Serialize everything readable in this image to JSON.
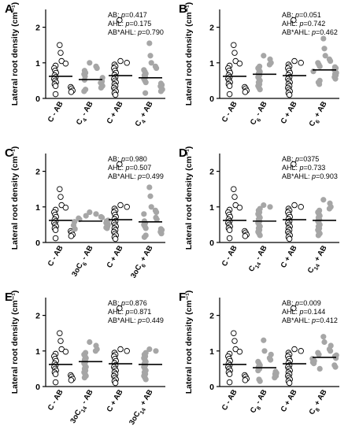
{
  "chart_data": [
    {
      "type": "scatter",
      "panel_label": "A",
      "ylabel": "Lateral root density (cm⁻¹)",
      "ylim": [
        0,
        2.5
      ],
      "yticks": [
        "0",
        "1",
        "2"
      ],
      "categories": [
        {
          "main": "C - AB",
          "sub": ""
        },
        {
          "main": "C",
          "sub": "4",
          "suffix": " - AB"
        },
        {
          "main": "C + AB",
          "sub": ""
        },
        {
          "main": "C",
          "sub": "4",
          "suffix": " + AB"
        }
      ],
      "stats": [
        {
          "label": "AB: ",
          "p": "p",
          "value": "=0.417"
        },
        {
          "label": "AHL: ",
          "p": "p",
          "value": "=0.175"
        },
        {
          "label": "AB*AHL: ",
          "p": "p",
          "value": "=0.790"
        }
      ],
      "series": [
        {
          "values": [
            1.5,
            1.28,
            1.05,
            0.98,
            0.92,
            0.85,
            0.78,
            0.72,
            0.65,
            0.6,
            0.55,
            0.5,
            0.45,
            0.4,
            0.35,
            0.32,
            0.28,
            0.22,
            0.18,
            0.12
          ],
          "mean": 0.62,
          "filled": false
        },
        {
          "values": [
            1.0,
            0.9,
            0.85,
            0.78,
            0.72,
            0.68,
            0.62,
            0.58,
            0.52,
            0.48,
            0.44,
            0.4,
            0.35,
            0.3,
            0.25,
            0.2
          ],
          "mean": 0.53,
          "filled": true
        },
        {
          "values": [
            2.2,
            1.05,
            1.0,
            0.95,
            0.9,
            0.85,
            0.78,
            0.72,
            0.66,
            0.6,
            0.55,
            0.5,
            0.45,
            0.4,
            0.35,
            0.3,
            0.25,
            0.2,
            0.15,
            0.1
          ],
          "mean": 0.64,
          "filled": false
        },
        {
          "values": [
            1.55,
            1.2,
            1.0,
            0.9,
            0.85,
            0.8,
            0.75,
            0.7,
            0.65,
            0.6,
            0.55,
            0.5,
            0.45,
            0.42,
            0.38,
            0.34,
            0.3,
            0.25,
            0.2,
            0.15
          ],
          "mean": 0.58,
          "filled": true
        }
      ]
    },
    {
      "type": "scatter",
      "panel_label": "B",
      "ylabel": "Lateral root density (cm⁻¹)",
      "ylim": [
        0,
        2.5
      ],
      "yticks": [
        "0",
        "1",
        "2"
      ],
      "categories": [
        {
          "main": "C - AB",
          "sub": ""
        },
        {
          "main": "C",
          "sub": "6",
          "suffix": " - AB"
        },
        {
          "main": "C + AB",
          "sub": ""
        },
        {
          "main": "C",
          "sub": "6",
          "suffix": " + AB"
        }
      ],
      "stats": [
        {
          "label": "AB: ",
          "p": "p",
          "value": "=0.051"
        },
        {
          "label": "AHL: ",
          "p": "p",
          "value": "=0.742"
        },
        {
          "label": "AB*AHL: ",
          "p": "p",
          "value": "=0.462"
        }
      ],
      "series": [
        {
          "values": [
            1.5,
            1.28,
            1.05,
            0.98,
            0.92,
            0.85,
            0.78,
            0.72,
            0.65,
            0.6,
            0.55,
            0.5,
            0.45,
            0.4,
            0.35,
            0.32,
            0.28,
            0.22,
            0.18,
            0.12
          ],
          "mean": 0.62,
          "filled": false
        },
        {
          "values": [
            1.2,
            1.1,
            1.0,
            0.95,
            0.9,
            0.85,
            0.8,
            0.75,
            0.7,
            0.65,
            0.6,
            0.55,
            0.5,
            0.45,
            0.4,
            0.35,
            0.3,
            0.25
          ],
          "mean": 0.68,
          "filled": true
        },
        {
          "values": [
            2.2,
            1.05,
            1.0,
            0.95,
            0.9,
            0.85,
            0.78,
            0.72,
            0.66,
            0.6,
            0.55,
            0.5,
            0.45,
            0.4,
            0.35,
            0.3,
            0.25,
            0.2,
            0.15,
            0.1
          ],
          "mean": 0.64,
          "filled": false
        },
        {
          "values": [
            1.68,
            1.4,
            1.2,
            1.1,
            1.05,
            1.0,
            0.95,
            0.9,
            0.88,
            0.85,
            0.8,
            0.76,
            0.72,
            0.68,
            0.65,
            0.6,
            0.55,
            0.5,
            0.45,
            0.4
          ],
          "mean": 0.8,
          "filled": true
        }
      ]
    },
    {
      "type": "scatter",
      "panel_label": "C",
      "ylabel": "Lateral root density (cm⁻¹)",
      "ylim": [
        0,
        2.5
      ],
      "yticks": [
        "0",
        "1",
        "2"
      ],
      "categories": [
        {
          "main": "C - AB",
          "sub": ""
        },
        {
          "main": "3oC",
          "sub": "6",
          "suffix": " - AB"
        },
        {
          "main": "C + AB",
          "sub": ""
        },
        {
          "main": "3oC",
          "sub": "6",
          "suffix": " + AB"
        }
      ],
      "stats": [
        {
          "label": "AB: ",
          "p": "p",
          "value": "=0.980"
        },
        {
          "label": "AHL: ",
          "p": "p",
          "value": "=0.507"
        },
        {
          "label": "AB*AHL: ",
          "p": "p",
          "value": "=0.499"
        }
      ],
      "series": [
        {
          "values": [
            1.5,
            1.28,
            1.05,
            0.98,
            0.92,
            0.85,
            0.78,
            0.72,
            0.65,
            0.6,
            0.55,
            0.5,
            0.45,
            0.4,
            0.35,
            0.32,
            0.28,
            0.22,
            0.18,
            0.12
          ],
          "mean": 0.62,
          "filled": false
        },
        {
          "values": [
            0.85,
            0.8,
            0.75,
            0.72,
            0.7,
            0.68,
            0.65,
            0.62,
            0.6,
            0.58,
            0.55,
            0.52,
            0.5,
            0.48,
            0.45,
            0.42,
            0.4,
            0.38
          ],
          "mean": 0.6,
          "filled": true
        },
        {
          "values": [
            2.2,
            1.05,
            1.0,
            0.95,
            0.9,
            0.85,
            0.78,
            0.72,
            0.66,
            0.6,
            0.55,
            0.5,
            0.45,
            0.4,
            0.35,
            0.3,
            0.25,
            0.2,
            0.15,
            0.1
          ],
          "mean": 0.64,
          "filled": false
        },
        {
          "values": [
            1.55,
            1.3,
            1.0,
            0.9,
            0.85,
            0.8,
            0.7,
            0.65,
            0.6,
            0.55,
            0.5,
            0.45,
            0.4,
            0.38,
            0.35,
            0.3,
            0.25,
            0.2,
            0.15
          ],
          "mean": 0.58,
          "filled": true
        }
      ]
    },
    {
      "type": "scatter",
      "panel_label": "D",
      "ylabel": "Lateral root density (cm⁻¹)",
      "ylim": [
        0,
        2.5
      ],
      "yticks": [
        "0",
        "1",
        "2"
      ],
      "categories": [
        {
          "main": "C - AB",
          "sub": ""
        },
        {
          "main": "C",
          "sub": "14",
          "suffix": " - AB"
        },
        {
          "main": "C + AB",
          "sub": ""
        },
        {
          "main": "C",
          "sub": "14",
          "suffix": " + AB"
        }
      ],
      "stats": [
        {
          "label": "AB: ",
          "p": "p",
          "value": "=0375"
        },
        {
          "label": "AHL: ",
          "p": "p",
          "value": "=0.733"
        },
        {
          "label": "AB*AHL: ",
          "p": "p",
          "value": "=0.903"
        }
      ],
      "series": [
        {
          "values": [
            1.5,
            1.28,
            1.05,
            0.98,
            0.92,
            0.85,
            0.78,
            0.72,
            0.65,
            0.6,
            0.55,
            0.5,
            0.45,
            0.4,
            0.35,
            0.32,
            0.28,
            0.22,
            0.18,
            0.12
          ],
          "mean": 0.62,
          "filled": false
        },
        {
          "values": [
            1.05,
            1.0,
            0.95,
            0.9,
            0.85,
            0.8,
            0.75,
            0.7,
            0.65,
            0.6,
            0.55,
            0.5,
            0.45,
            0.4,
            0.35,
            0.3,
            0.25,
            0.2
          ],
          "mean": 0.6,
          "filled": true
        },
        {
          "values": [
            2.2,
            1.05,
            1.0,
            0.95,
            0.9,
            0.85,
            0.78,
            0.72,
            0.66,
            0.6,
            0.55,
            0.5,
            0.45,
            0.4,
            0.35,
            0.3,
            0.25,
            0.2,
            0.15,
            0.1
          ],
          "mean": 0.64,
          "filled": false
        },
        {
          "values": [
            1.2,
            1.1,
            1.0,
            0.95,
            0.9,
            0.85,
            0.8,
            0.75,
            0.7,
            0.65,
            0.6,
            0.55,
            0.5,
            0.45,
            0.4,
            0.35,
            0.3,
            0.25,
            0.2
          ],
          "mean": 0.62,
          "filled": true
        }
      ]
    },
    {
      "type": "scatter",
      "panel_label": "E",
      "ylabel": "Lateral root density (cm⁻¹)",
      "ylim": [
        0,
        2.5
      ],
      "yticks": [
        "0",
        "1",
        "2"
      ],
      "categories": [
        {
          "main": "C - AB",
          "sub": ""
        },
        {
          "main": "3oC",
          "sub": "14",
          "suffix": " - AB"
        },
        {
          "main": "C + AB",
          "sub": ""
        },
        {
          "main": "3oC",
          "sub": "14",
          "suffix": " + AB"
        }
      ],
      "stats": [
        {
          "label": "AB: ",
          "p": "p",
          "value": "=0.876"
        },
        {
          "label": "AHL: ",
          "p": "p",
          "value": "=0.871"
        },
        {
          "label": "AB*AHL: ",
          "p": "p",
          "value": "=0.449"
        }
      ],
      "series": [
        {
          "values": [
            1.5,
            1.28,
            1.05,
            0.98,
            0.92,
            0.85,
            0.78,
            0.72,
            0.65,
            0.6,
            0.55,
            0.5,
            0.45,
            0.4,
            0.35,
            0.32,
            0.28,
            0.22,
            0.18,
            0.12
          ],
          "mean": 0.62,
          "filled": false
        },
        {
          "values": [
            1.25,
            1.15,
            1.05,
            1.0,
            0.95,
            0.9,
            0.85,
            0.8,
            0.75,
            0.7,
            0.65,
            0.6,
            0.55,
            0.5,
            0.45,
            0.4,
            0.35,
            0.3,
            0.25
          ],
          "mean": 0.7,
          "filled": true
        },
        {
          "values": [
            2.2,
            1.05,
            1.0,
            0.95,
            0.9,
            0.85,
            0.78,
            0.72,
            0.66,
            0.6,
            0.55,
            0.5,
            0.45,
            0.4,
            0.35,
            0.3,
            0.25,
            0.2,
            0.15,
            0.1
          ],
          "mean": 0.64,
          "filled": false
        },
        {
          "values": [
            1.05,
            1.0,
            0.95,
            0.9,
            0.85,
            0.8,
            0.75,
            0.7,
            0.65,
            0.6,
            0.55,
            0.5,
            0.45,
            0.4,
            0.35,
            0.3,
            0.25,
            0.2
          ],
          "mean": 0.62,
          "filled": true
        }
      ]
    },
    {
      "type": "scatter",
      "panel_label": "F",
      "ylabel": "Lateral root density (cm⁻¹)",
      "ylim": [
        0,
        2.5
      ],
      "yticks": [
        "0",
        "1",
        "2"
      ],
      "categories": [
        {
          "main": "C - AB",
          "sub": ""
        },
        {
          "main": "C",
          "sub": "8",
          "suffix": " - AB"
        },
        {
          "main": "C + AB",
          "sub": ""
        },
        {
          "main": "C",
          "sub": "8",
          "suffix": " + AB"
        }
      ],
      "stats": [
        {
          "label": "AB: ",
          "p": "p",
          "value": "=0.009"
        },
        {
          "label": "AHL: ",
          "p": "p",
          "value": "=0.144"
        },
        {
          "label": "AB*AHL: ",
          "p": "p",
          "value": "=0.412"
        }
      ],
      "series": [
        {
          "values": [
            1.5,
            1.28,
            1.05,
            0.98,
            0.92,
            0.85,
            0.78,
            0.72,
            0.65,
            0.6,
            0.55,
            0.5,
            0.45,
            0.4,
            0.35,
            0.32,
            0.28,
            0.22,
            0.18,
            0.12
          ],
          "mean": 0.62,
          "filled": false
        },
        {
          "values": [
            1.3,
            1.0,
            0.9,
            0.8,
            0.75,
            0.7,
            0.65,
            0.6,
            0.55,
            0.5,
            0.45,
            0.42,
            0.38,
            0.35,
            0.3,
            0.25,
            0.2,
            0.15
          ],
          "mean": 0.53,
          "filled": true
        },
        {
          "values": [
            2.2,
            1.05,
            1.0,
            0.95,
            0.9,
            0.85,
            0.78,
            0.72,
            0.66,
            0.6,
            0.55,
            0.5,
            0.45,
            0.4,
            0.35,
            0.3,
            0.25,
            0.2,
            0.15,
            0.1
          ],
          "mean": 0.64,
          "filled": false
        },
        {
          "values": [
            1.4,
            1.25,
            1.15,
            1.05,
            1.0,
            0.95,
            0.9,
            0.88,
            0.85,
            0.8,
            0.78,
            0.75,
            0.72,
            0.68,
            0.65,
            0.6,
            0.55,
            0.5
          ],
          "mean": 0.82,
          "filled": true
        }
      ]
    }
  ],
  "colors": {
    "filled_marker": "#a6a6a6",
    "open_marker_stroke": "#000000",
    "axis": "#000000",
    "mean_line": "#000000"
  }
}
